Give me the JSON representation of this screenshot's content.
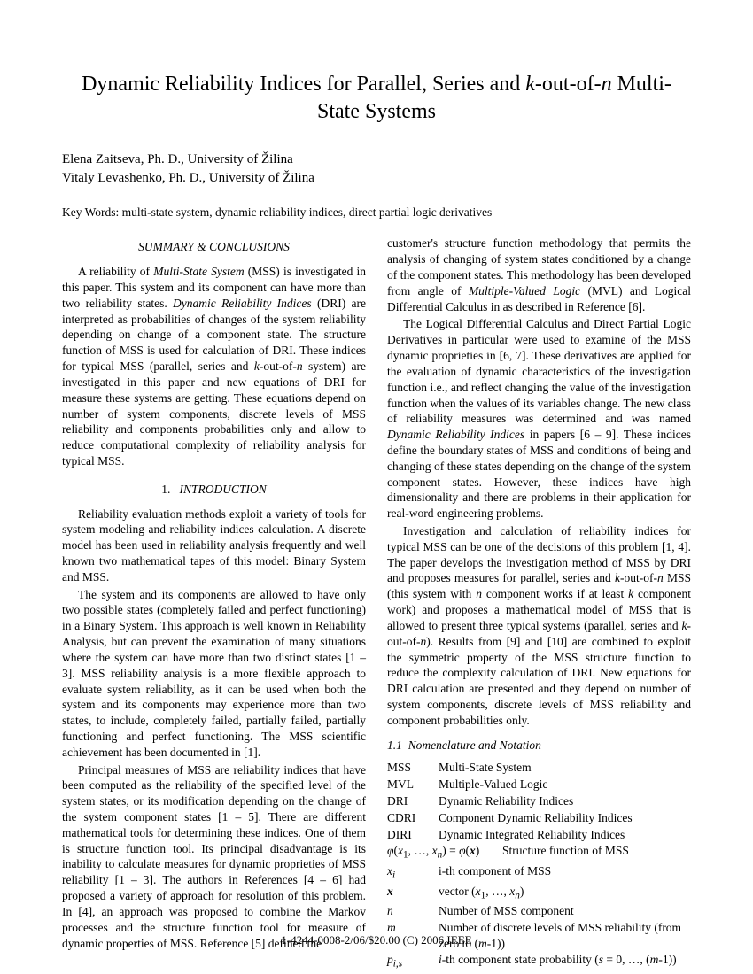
{
  "title_html": "Dynamic Reliability Indices for Parallel, Series and <span class='ital'>k</span>-out-of-<span class='ital'>n</span> Multi-State Systems",
  "authors": [
    "Elena Zaitseva, Ph. D., University of Žilina",
    "Vitaly Levashenko, Ph. D., University of Žilina"
  ],
  "keywords": "Key Words: multi-state system, dynamic reliability indices, direct partial logic derivatives",
  "summary_heading": "SUMMARY & CONCLUSIONS",
  "summary_html": "A reliability of <span class='ital'>Multi-State System</span> (MSS) is investigated in this paper. This system and its component can have more than two reliability states. <span class='ital'>Dynamic Reliability Indices</span> (DRI) are interpreted as probabilities of changes of the system reliability depending on change of a component state. The structure function of MSS is used for calculation of DRI. These indices for typical MSS (parallel, series and <span class='ital'>k</span>-out-of-<span class='ital'>n</span> system) are investigated in this paper and new equations of DRI for measure these systems are getting. These equations depend on number of system components, discrete levels of MSS reliability and components probabilities only and allow to reduce computational complexity of reliability analysis for typical MSS.",
  "intro_heading_html": "1.&nbsp;&nbsp;&nbsp;<span class='ital'>INTRODUCTION</span>",
  "intro_p1": "Reliability evaluation methods exploit a variety of tools for system modeling and reliability indices calculation. A discrete model has been used in reliability analysis frequently and well known two mathematical tapes of this model: Binary System and MSS.",
  "intro_p2": "The system and its components are allowed to have only two possible states (completely failed and perfect functioning) in a Binary System. This approach is well known in Reliability Analysis, but can prevent the examination of many situations where the system can have more than two distinct states [1 – 3]. MSS reliability analysis is a more flexible approach to evaluate system reliability, as it can be used when both the system and its components may experience more than two states, to include, completely failed, partially failed, partially functioning and perfect functioning. The MSS scientific achievement has been documented in [1].",
  "intro_p3": "Principal measures of MSS are reliability indices that have been computed as the reliability of the specified level of the system states, or its modification depending on the change of the system component states [1 – 5]. There are different mathematical tools for determining these indices. One of them is structure function tool. Its principal disadvantage is its inability to calculate measures for dynamic proprieties of MSS reliability [1 – 3]. The authors in References [4 – 6] had proposed a variety of approach for resolution of this problem. In [4], an approach was proposed to combine the Markov processes and the structure function tool for measure of dynamic properties of MSS. Reference [5] defined the",
  "col2_p1_html": "customer's structure function methodology that permits the analysis of changing of system states conditioned by a change of the component states. This methodology has been developed from angle of <span class='ital'>Multiple-Valued Logic</span> (MVL) and Logical Differential Calculus in as described in Reference [6].",
  "col2_p2_html": "The Logical Differential Calculus and Direct Partial Logic Derivatives in particular were used to examine of the MSS dynamic proprieties in [6, 7]. These derivatives are applied for the evaluation of dynamic characteristics of the investigation function i.e., and reflect changing the value of the investigation function when the values of its variables change. The new class of reliability measures was determined and was named <span class='ital'>Dynamic Reliability Indices</span> in papers [6 – 9]. These indices define the boundary states of MSS and conditions of being and changing of these states depending on the change of the system component states. However, these indices have high dimensionality and there are problems in their application for real-word engineering problems.",
  "col2_p3_html": "Investigation and calculation of reliability indices for typical MSS can be one of the decisions of this problem [1, 4]. The paper develops the investigation method of MSS by DRI and proposes measures for parallel, series and <span class='ital'>k</span>-out-of-<span class='ital'>n</span> MSS (this system with <span class='ital'>n</span> component works if at least <span class='ital'>k</span> component work) and proposes a mathematical model of MSS that is allowed to present three typical systems (parallel, series and <span class='ital'>k</span>-out-of-<span class='ital'>n</span>). Results from [9] and [10] are combined to exploit the symmetric property of the MSS structure function to reduce the complexity calculation of DRI. New equations for DRI calculation are presented and they depend on number of system components, discrete levels of MSS reliability and component probabilities only.",
  "nomen_heading_html": "1.1&nbsp;&nbsp;<span class='ital'>Nomenclature and Notation</span>",
  "nomenclature": [
    {
      "sym": "MSS",
      "def": "Multi-State System"
    },
    {
      "sym": "MVL",
      "def": "Multiple-Valued Logic"
    },
    {
      "sym": "DRI",
      "def": "Dynamic Reliability Indices"
    },
    {
      "sym": "CDRI",
      "def": "Component Dynamic Reliability Indices"
    },
    {
      "sym": "DIRI",
      "def": "Dynamic Integrated Reliability Indices"
    },
    {
      "sym_html": "<span class='ital'>φ</span>(<span class='ital'>x</span><sub>1</sub>, …, <span class='ital'>x<sub>n</sub></span>) = <span class='ital'>φ</span>(<span class='ital'><b>x</b></span>)",
      "def": "Structure function of MSS",
      "wide": true
    },
    {
      "sym_html": "<span class='ital'>x<sub>i</sub></span>",
      "def": "i-th component of MSS"
    },
    {
      "sym_html": "<span class='ital'><b>x</b></span>",
      "def_html": "vector (<span class='ital'>x</span><sub>1</sub>, …, <span class='ital'>x<sub>n</sub></span>)"
    },
    {
      "sym_html": "<span class='ital'>n</span>",
      "def": "Number of MSS component"
    },
    {
      "sym_html": "<span class='ital'>m</span>",
      "def_html": "Number of discrete levels of MSS reliability (from zero to (<span class='ital'>m</span>-1))"
    },
    {
      "sym_html": "<span class='ital'>p<sub>i,s</sub></span>",
      "def_html": "<span class='ital'>i</span>-th component state probability (<span class='ital'>s</span> = 0, …, (<span class='ital'>m</span>-1))"
    }
  ],
  "footer": "1-4244-0008-2/06/$20.00 (C) 2006 IEEE"
}
